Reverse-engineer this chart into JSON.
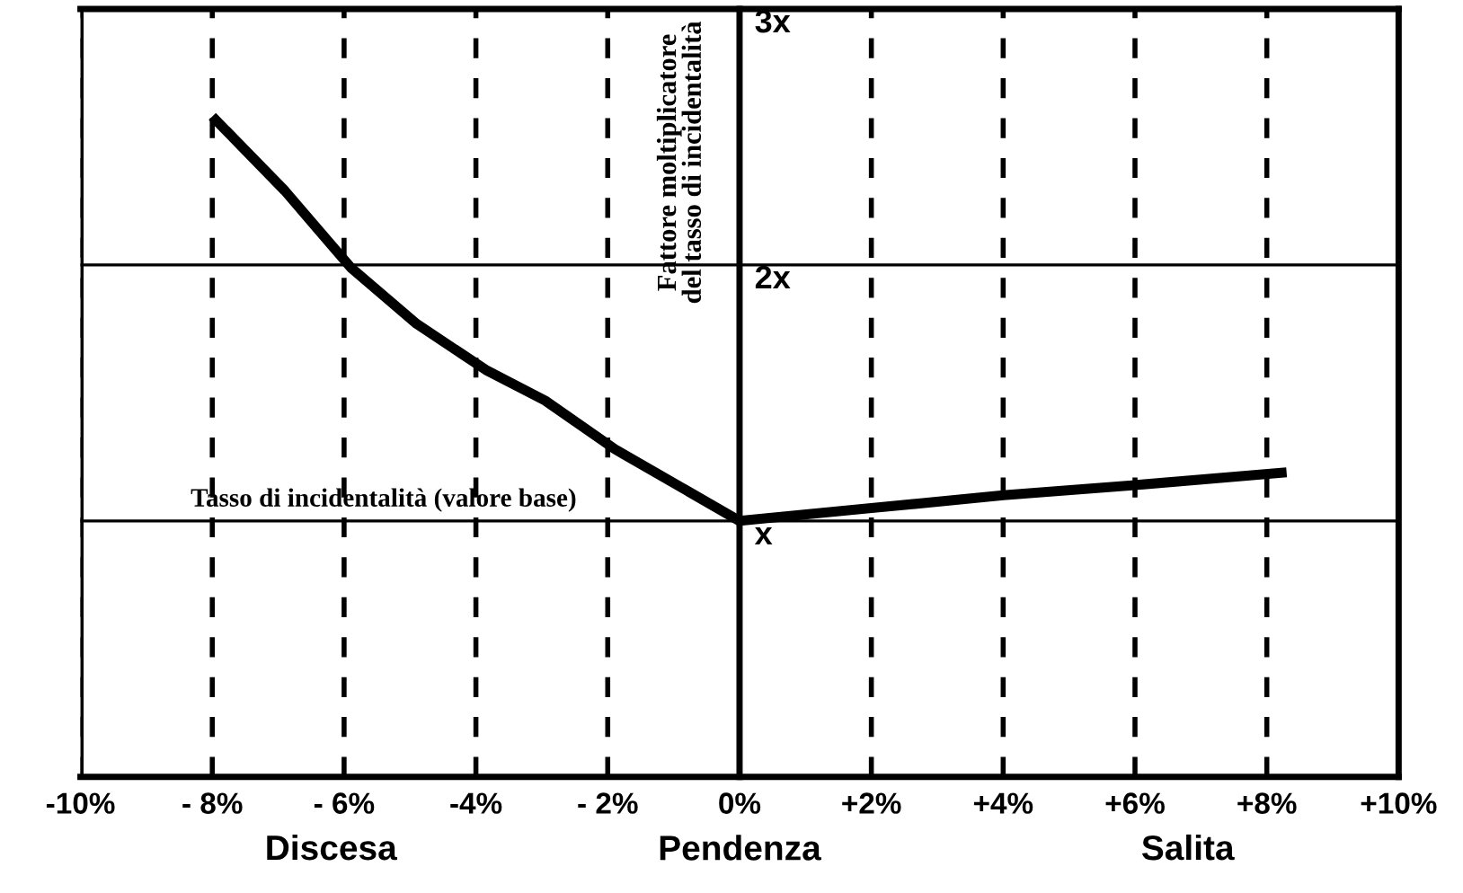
{
  "chart_data": {
    "type": "line",
    "xlabel": "Pendenza",
    "ylabel": "Fattore moltiplicatore\ndel tasso di incidentalità",
    "x": [
      -8.0,
      -6.9,
      -5.9,
      -4.9,
      -3.85,
      -2.95,
      -1.89,
      0,
      2,
      4,
      6,
      8.3
    ],
    "series": [
      {
        "color": "#000000",
        "values": [
          2.58,
          2.29,
          1.99,
          1.77,
          1.59,
          1.47,
          1.28,
          1.0,
          1.05,
          1.1,
          1.14,
          1.19
        ]
      }
    ],
    "xlim": [
      -10,
      10
    ],
    "xticks": [
      {
        "value": -10,
        "label": "-10%"
      },
      {
        "value": -8,
        "label": "- 8%"
      },
      {
        "value": -6,
        "label": "- 6%"
      },
      {
        "value": -4,
        "label": "-4%"
      },
      {
        "value": -2,
        "label": "- 2%"
      },
      {
        "value": 0,
        "label": "0%"
      },
      {
        "value": 2,
        "label": "+2%"
      },
      {
        "value": 4,
        "label": "+4%"
      },
      {
        "value": 6,
        "label": "+6%"
      },
      {
        "value": 8,
        "label": "+8%"
      },
      {
        "value": 10,
        "label": "+10%"
      }
    ],
    "ylim": [
      0,
      3
    ],
    "yticks": [
      {
        "value": 1,
        "label": "x"
      },
      {
        "value": 2,
        "label": "2x"
      },
      {
        "value": 3,
        "label": "3x"
      }
    ],
    "grid": true,
    "marker": "none",
    "line_style": "solid",
    "annotations": [
      "Tasso di incidentalità (valore base)",
      "Discesa",
      "Salita"
    ]
  }
}
